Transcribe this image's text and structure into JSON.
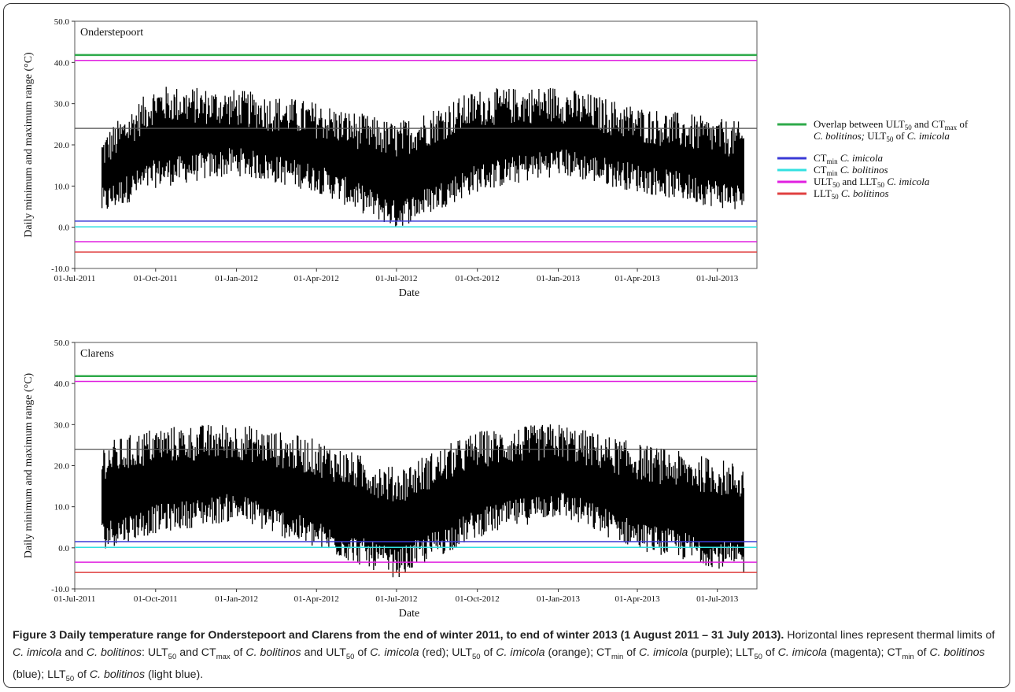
{
  "panels": [
    {
      "title": "Onderstepoort",
      "xlabel": "Date",
      "ylabel": "Daily minimum and maximum range (°C)",
      "yticks": [
        "50.0",
        "40.0",
        "30.0",
        "20.0",
        "10.0",
        "0.0",
        "-10.0"
      ],
      "xticks": [
        "01-Jul-2011",
        "01-Oct-2011",
        "01-Jan-2012",
        "01-Apr-2012",
        "01-Jul-2012",
        "01-Oct-2012",
        "01-Jan-2013",
        "01-Apr-2013",
        "01-Jul-2013"
      ]
    },
    {
      "title": "Clarens",
      "xlabel": "Date",
      "ylabel": "Daily minimum and maximum range (°C)",
      "yticks": [
        "50.0",
        "40.0",
        "30.0",
        "20.0",
        "10.0",
        "0.0",
        "-10.0"
      ],
      "xticks": [
        "01-Jul-2011",
        "01-Oct-2011",
        "01-Jan-2012",
        "01-Apr-2012",
        "01-Jul-2012",
        "01-Oct-2012",
        "01-Jan-2013",
        "01-Apr-2013",
        "01-Jul-2013"
      ]
    }
  ],
  "legend": [
    {
      "parts": [
        "Overlap between ULT",
        "50",
        " and CT",
        "max",
        " of"
      ],
      "line2": [
        "C. bolitinos;",
        " ULT",
        "50",
        " of ",
        "C. imicola"
      ],
      "color": "#2eaa4a"
    },
    {
      "parts": [
        "CT",
        "min",
        " ",
        "C. imicola"
      ],
      "color": "#3a3ad6"
    },
    {
      "parts": [
        "CT",
        "min",
        " ",
        "C. bolitinos"
      ],
      "color": "#33e0e0"
    },
    {
      "parts": [
        "ULT",
        "50",
        " and LLT",
        "50",
        " ",
        "C. imicola"
      ],
      "color": "#e020e0"
    },
    {
      "parts": [
        "LLT",
        "50",
        " ",
        "C. bolitinos"
      ],
      "color": "#e04040"
    }
  ],
  "caption": {
    "bold": "Figure 3 Daily temperature range for Onderstepoort and Clarens from the end of winter 2011, to end of winter 2013 (1 August 2011 – 31 July 2013).",
    "text": " Horizontal lines represent thermal limits of C. imicola and C. bolitinos: ULT50 and CTmax of C. bolitinos and ULT50 of C. imicola (red); ULT50 of C. imicola (orange); CTmin of C. imicola (purple); LLT50 of C. imicola (magenta); CTmin of C. bolitinos (blue); LLT50 of C. bolitinos (light blue)."
  },
  "chart_data": [
    {
      "type": "line",
      "title": "Onderstepoort",
      "xlabel": "Date",
      "ylabel": "Daily minimum and maximum range (°C)",
      "xlim": [
        "2011-07-01",
        "2013-08-15"
      ],
      "ylim": [
        -10,
        50
      ],
      "data_start": "2011-08-01",
      "data_end": "2013-07-31",
      "series": [
        {
          "name": "daily range",
          "x": [
            "2011-08-01",
            "2011-10-01",
            "2012-01-01",
            "2012-04-01",
            "2012-07-01",
            "2012-10-01",
            "2013-01-01",
            "2013-04-01",
            "2013-07-31"
          ],
          "max": [
            18,
            30,
            29,
            26,
            21,
            29,
            30,
            25,
            21
          ],
          "min": [
            6,
            13,
            16,
            12,
            3,
            12,
            16,
            12,
            7
          ]
        }
      ],
      "hlines": [
        {
          "value": 41.8,
          "color": "#2eaa4a",
          "name": "Overlap between ULT50 and CTmax of C. bolitinos; ULT50 of C. imicola"
        },
        {
          "value": 40.5,
          "color": "#e020e0",
          "name": "ULT50 and LLT50 C. imicola"
        },
        {
          "value": 24.0,
          "color": "#555555"
        },
        {
          "value": 1.5,
          "color": "#3a3ad6",
          "name": "CTmin C. imicola"
        },
        {
          "value": 0.1,
          "color": "#33e0e0",
          "name": "CTmin C. bolitinos"
        },
        {
          "value": -3.5,
          "color": "#e020e0",
          "name": "ULT50 and LLT50 C. imicola"
        },
        {
          "value": -6.0,
          "color": "#e04040",
          "name": "LLT50 C. bolitinos"
        }
      ]
    },
    {
      "type": "line",
      "title": "Clarens",
      "xlabel": "Date",
      "ylabel": "Daily minimum and maximum range (°C)",
      "xlim": [
        "2011-07-01",
        "2013-08-15"
      ],
      "ylim": [
        -10,
        50
      ],
      "data_start": "2011-08-01",
      "data_end": "2013-07-31",
      "series": [
        {
          "name": "daily range",
          "x": [
            "2011-08-01",
            "2011-10-01",
            "2012-01-01",
            "2012-04-01",
            "2012-07-01",
            "2012-10-01",
            "2013-01-01",
            "2013-04-01",
            "2013-07-31"
          ],
          "max": [
            21,
            25,
            26,
            22,
            15,
            24,
            26,
            21,
            16
          ],
          "min": [
            3,
            7,
            10,
            3,
            -4,
            6,
            11,
            3,
            -3
          ]
        }
      ],
      "hlines": [
        {
          "value": 41.8,
          "color": "#2eaa4a",
          "name": "Overlap between ULT50 and CTmax of C. bolitinos; ULT50 of C. imicola"
        },
        {
          "value": 40.5,
          "color": "#e020e0",
          "name": "ULT50 and LLT50 C. imicola"
        },
        {
          "value": 24.0,
          "color": "#555555"
        },
        {
          "value": 1.5,
          "color": "#3a3ad6",
          "name": "CTmin C. imicola"
        },
        {
          "value": 0.1,
          "color": "#33e0e0",
          "name": "CTmin C. bolitinos"
        },
        {
          "value": -3.5,
          "color": "#e020e0",
          "name": "ULT50 and LLT50 C. imicola"
        },
        {
          "value": -6.0,
          "color": "#e04040",
          "name": "LLT50 C. bolitinos"
        }
      ]
    }
  ]
}
